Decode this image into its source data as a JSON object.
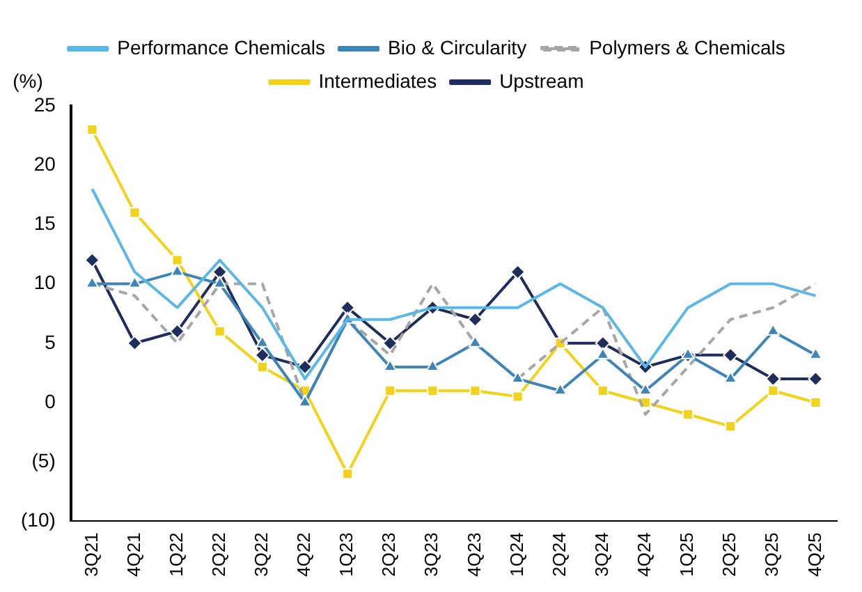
{
  "chart_data": {
    "type": "line",
    "ylabel": "(%)",
    "categories": [
      "3Q21",
      "4Q21",
      "1Q22",
      "2Q22",
      "3Q22",
      "4Q22",
      "1Q23",
      "2Q23",
      "3Q23",
      "4Q23",
      "1Q24",
      "2Q24",
      "3Q24",
      "4Q24",
      "1Q25",
      "2Q25",
      "3Q25",
      "4Q25"
    ],
    "series": [
      {
        "name": "Upstream",
        "color": "#1f2d5c",
        "marker": "diamond",
        "line_style": "solid",
        "values": [
          12,
          5,
          6,
          11,
          4,
          3,
          8,
          5,
          8,
          7,
          11,
          5,
          5,
          3,
          4,
          4,
          2,
          2
        ]
      },
      {
        "name": "Intermediates",
        "color": "#f2d21b",
        "marker": "square",
        "line_style": "solid",
        "values": [
          23,
          16,
          12,
          6,
          3,
          1,
          -6,
          1,
          1,
          1,
          0.5,
          5,
          1,
          0,
          -1,
          -2,
          1,
          0
        ]
      },
      {
        "name": "Polymers & Chemicals",
        "color": "#a6a6a6",
        "marker": "none",
        "line_style": "dashed",
        "values": [
          10,
          9,
          5,
          10,
          10,
          0,
          7,
          4,
          10,
          5,
          2,
          5,
          8,
          -1,
          3,
          7,
          8,
          10
        ]
      },
      {
        "name": "Bio & Circularity",
        "color": "#3d85b8",
        "marker": "triangle",
        "line_style": "solid",
        "values": [
          10,
          10,
          11,
          10,
          5,
          0,
          7,
          3,
          3,
          5,
          2,
          1,
          4,
          1,
          4,
          2,
          6,
          4
        ]
      },
      {
        "name": "Performance Chemicals",
        "color": "#5bb8e6",
        "marker": "none",
        "line_style": "solid",
        "values": [
          18,
          11,
          8,
          12,
          8,
          2,
          7,
          7,
          8,
          8,
          8,
          10,
          8,
          3,
          8,
          10,
          10,
          9
        ]
      }
    ],
    "ylim": [
      -10,
      25
    ],
    "yticks": [
      {
        "value": -10,
        "label": "(10)"
      },
      {
        "value": -5,
        "label": "(5)"
      },
      0,
      5,
      10,
      15,
      20,
      25
    ],
    "grid": false,
    "legend": "top"
  }
}
